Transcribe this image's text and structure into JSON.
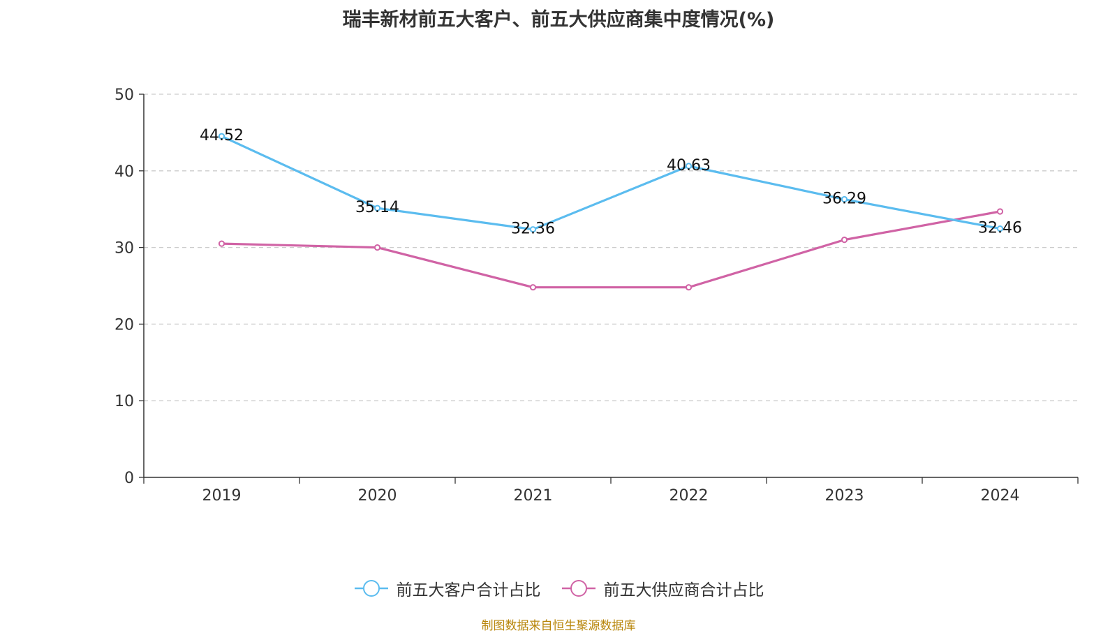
{
  "chart_data": {
    "type": "line",
    "title": "瑞丰新材前五大客户、前五大供应商集中度情况(%)",
    "categories": [
      "2019",
      "2020",
      "2021",
      "2022",
      "2023",
      "2024"
    ],
    "ylim": [
      0,
      50
    ],
    "yticks": [
      0,
      10,
      20,
      30,
      40,
      50
    ],
    "grid": true,
    "legend_position": "bottom-center",
    "series": [
      {
        "name": "前五大客户合计占比",
        "color": "#5bbcef",
        "values": [
          44.52,
          35.14,
          32.36,
          40.63,
          36.29,
          32.46
        ],
        "labels": [
          "44.52",
          "35.14",
          "32.36",
          "40.63",
          "36.29",
          "32.46"
        ],
        "show_labels": true
      },
      {
        "name": "前五大供应商合计占比",
        "color": "#d063a5",
        "values": [
          30.5,
          30.0,
          24.8,
          24.8,
          31.0,
          34.7
        ],
        "show_labels": false
      }
    ]
  },
  "legend": {
    "items": [
      {
        "label": "前五大客户合计占比",
        "color": "#5bbcef"
      },
      {
        "label": "前五大供应商合计占比",
        "color": "#d063a5"
      }
    ]
  },
  "footer": {
    "source_text": "制图数据来自恒生聚源数据库"
  }
}
